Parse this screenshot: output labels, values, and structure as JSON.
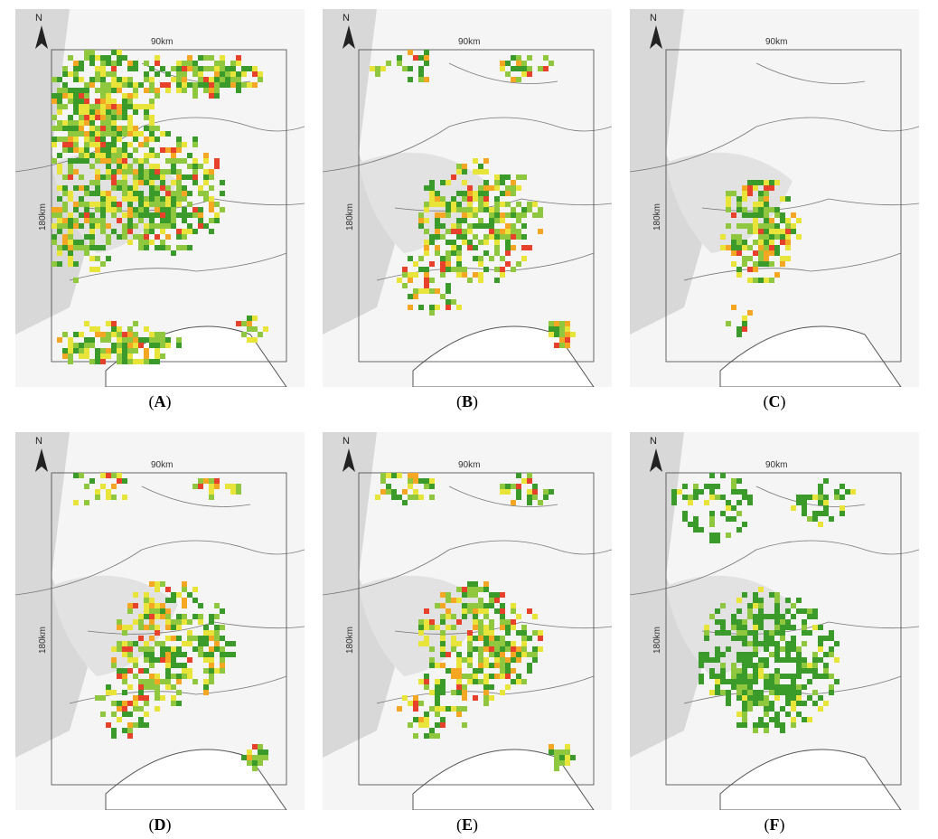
{
  "panels": [
    {
      "id": "A",
      "caption_letter": "A",
      "north_label": "N",
      "width_label": "90km",
      "height_label": "180km",
      "density": "west-wide",
      "colors": [
        "#3a9a2a",
        "#8fc73e",
        "#e8e43a",
        "#f5a623",
        "#e8412b"
      ]
    },
    {
      "id": "B",
      "caption_letter": "B",
      "north_label": "N",
      "width_label": "90km",
      "height_label": "180km",
      "density": "central",
      "colors": [
        "#3a9a2a",
        "#8fc73e",
        "#e8e43a",
        "#f5a623",
        "#e8412b"
      ]
    },
    {
      "id": "C",
      "caption_letter": "C",
      "north_label": "N",
      "width_label": "90km",
      "height_label": "180km",
      "density": "central-small",
      "colors": [
        "#3a9a2a",
        "#8fc73e",
        "#e8e43a",
        "#f5a623",
        "#e8412b"
      ]
    },
    {
      "id": "D",
      "caption_letter": "D",
      "north_label": "N",
      "width_label": "90km",
      "height_label": "180km",
      "density": "central",
      "colors": [
        "#3a9a2a",
        "#8fc73e",
        "#e8e43a",
        "#f5a623",
        "#e8412b"
      ]
    },
    {
      "id": "E",
      "caption_letter": "E",
      "north_label": "N",
      "width_label": "90km",
      "height_label": "180km",
      "density": "central",
      "colors": [
        "#3a9a2a",
        "#8fc73e",
        "#e8e43a",
        "#f5a623",
        "#e8412b"
      ]
    },
    {
      "id": "F",
      "caption_letter": "F",
      "north_label": "N",
      "width_label": "90km",
      "height_label": "180km",
      "density": "green-wide",
      "colors": [
        "#3a9a2a",
        "#8fc73e",
        "#e8e43a",
        "#f5a623",
        "#e8412b"
      ]
    }
  ],
  "caption_open": "(",
  "caption_close": ")"
}
